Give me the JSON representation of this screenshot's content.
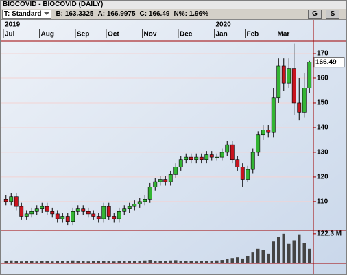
{
  "window_title": "BIOCOVID - BIOCOVID (DAILY)",
  "toolbar": {
    "template": "T: Standard",
    "bid": "B: 163.3325",
    "ask": "A: 166.9975",
    "close": "C: 166.49",
    "change": "N%: 1.96%",
    "buttons": [
      "G",
      "S"
    ]
  },
  "chart_data": {
    "type": "candlestick",
    "categories": [
      "Jul",
      null,
      null,
      null,
      null,
      null,
      null,
      "Aug",
      null,
      null,
      null,
      null,
      null,
      null,
      "Sep",
      null,
      null,
      null,
      null,
      null,
      "Oct",
      null,
      null,
      null,
      null,
      null,
      null,
      "Nov",
      null,
      null,
      null,
      null,
      null,
      null,
      "Dec",
      null,
      null,
      null,
      null,
      null,
      null,
      "Jan",
      null,
      null,
      null,
      null,
      null,
      "Feb",
      null,
      null,
      null,
      null,
      null,
      "Mar",
      null,
      null,
      null,
      null,
      null,
      null
    ],
    "year_labels": [
      "2019",
      null,
      null,
      null,
      null,
      null,
      null,
      null,
      null,
      null,
      null,
      null,
      null,
      null,
      null,
      null,
      null,
      null,
      null,
      null,
      null,
      null,
      null,
      null,
      null,
      null,
      null,
      null,
      null,
      null,
      null,
      null,
      null,
      null,
      null,
      null,
      null,
      null,
      null,
      null,
      null,
      "2020",
      null,
      null,
      null,
      null,
      null,
      null,
      null,
      null,
      null,
      null,
      null,
      null,
      null,
      null,
      null,
      null,
      null,
      null
    ],
    "open": [
      111,
      110,
      112,
      108,
      104,
      105,
      106,
      107,
      108,
      106,
      105,
      103,
      104,
      102,
      106,
      107,
      106,
      105,
      104,
      103,
      108,
      104,
      103,
      106,
      107,
      108,
      109,
      110,
      111,
      116,
      118,
      119,
      118,
      121,
      124,
      127,
      128,
      127,
      128,
      127,
      129,
      128,
      128,
      130,
      133,
      127,
      124,
      119,
      123,
      130,
      137,
      139,
      138,
      152,
      165,
      158,
      164,
      150,
      146,
      156
    ],
    "high": [
      112.5,
      113.5,
      113.5,
      109.5,
      106.5,
      107.5,
      108.5,
      109.5,
      109.5,
      107.5,
      106.5,
      105.5,
      105.5,
      107.5,
      108.5,
      108.5,
      107.5,
      106.5,
      105.5,
      109.5,
      109.5,
      105.5,
      107.5,
      108.5,
      109.5,
      110.5,
      111.5,
      112.5,
      117.5,
      119.5,
      120.5,
      120.5,
      122.5,
      125.5,
      128.5,
      129.5,
      129.5,
      129.5,
      129.5,
      130.5,
      130.5,
      129.5,
      131.5,
      134.5,
      134.5,
      128.5,
      125.5,
      124.5,
      131.5,
      138.5,
      141,
      141,
      156,
      168,
      168,
      168,
      174,
      160,
      162,
      167
    ],
    "low": [
      108.5,
      108.5,
      106.5,
      102.5,
      102.5,
      103.5,
      104.5,
      105.5,
      104.5,
      103.5,
      101.5,
      101.5,
      100.5,
      100.5,
      104.5,
      104.5,
      103.5,
      102.5,
      101.5,
      101.5,
      102.5,
      101.5,
      101.5,
      104.5,
      105.5,
      106.5,
      107.5,
      108.5,
      109.5,
      114.5,
      116.5,
      116.5,
      116.5,
      119.5,
      122.5,
      125.5,
      125.5,
      125.5,
      125.5,
      125.5,
      126.5,
      126.5,
      126.5,
      128.5,
      125.5,
      122.5,
      116,
      118,
      121.5,
      128.5,
      135,
      136,
      136,
      150,
      155,
      156,
      145,
      143,
      144,
      154
    ],
    "close": [
      110,
      112,
      108,
      104,
      105,
      106,
      107,
      108,
      106,
      105,
      103,
      104,
      102,
      106,
      107,
      106,
      105,
      104,
      103,
      108,
      104,
      103,
      106,
      107,
      108,
      109,
      110,
      111,
      116,
      118,
      119,
      118,
      121,
      124,
      127,
      128,
      127,
      128,
      127,
      129,
      128,
      128,
      130,
      133,
      127,
      124,
      119,
      123,
      130,
      137,
      139,
      138,
      152,
      165,
      158,
      164,
      150,
      146,
      156,
      166.49
    ],
    "volume": [
      10,
      12,
      9,
      8,
      11,
      9,
      8,
      10,
      9,
      8,
      11,
      10,
      9,
      12,
      10,
      9,
      8,
      9,
      10,
      11,
      9,
      8,
      10,
      9,
      11,
      10,
      9,
      12,
      14,
      11,
      10,
      9,
      12,
      13,
      11,
      10,
      9,
      8,
      10,
      9,
      10,
      12,
      14,
      18,
      22,
      25,
      20,
      30,
      45,
      60,
      55,
      40,
      90,
      110,
      122.3,
      80,
      95,
      120,
      85,
      60
    ],
    "ylim": [
      98.3,
      175
    ],
    "yticks": [
      110,
      120,
      130,
      140,
      150,
      160,
      170
    ],
    "vlim": [
      0,
      136
    ],
    "vticks": [
      {
        "value": 122.3,
        "label": "122.3 M"
      }
    ],
    "up_color": "#33b533",
    "down_color": "#c8141e",
    "grid": true
  }
}
